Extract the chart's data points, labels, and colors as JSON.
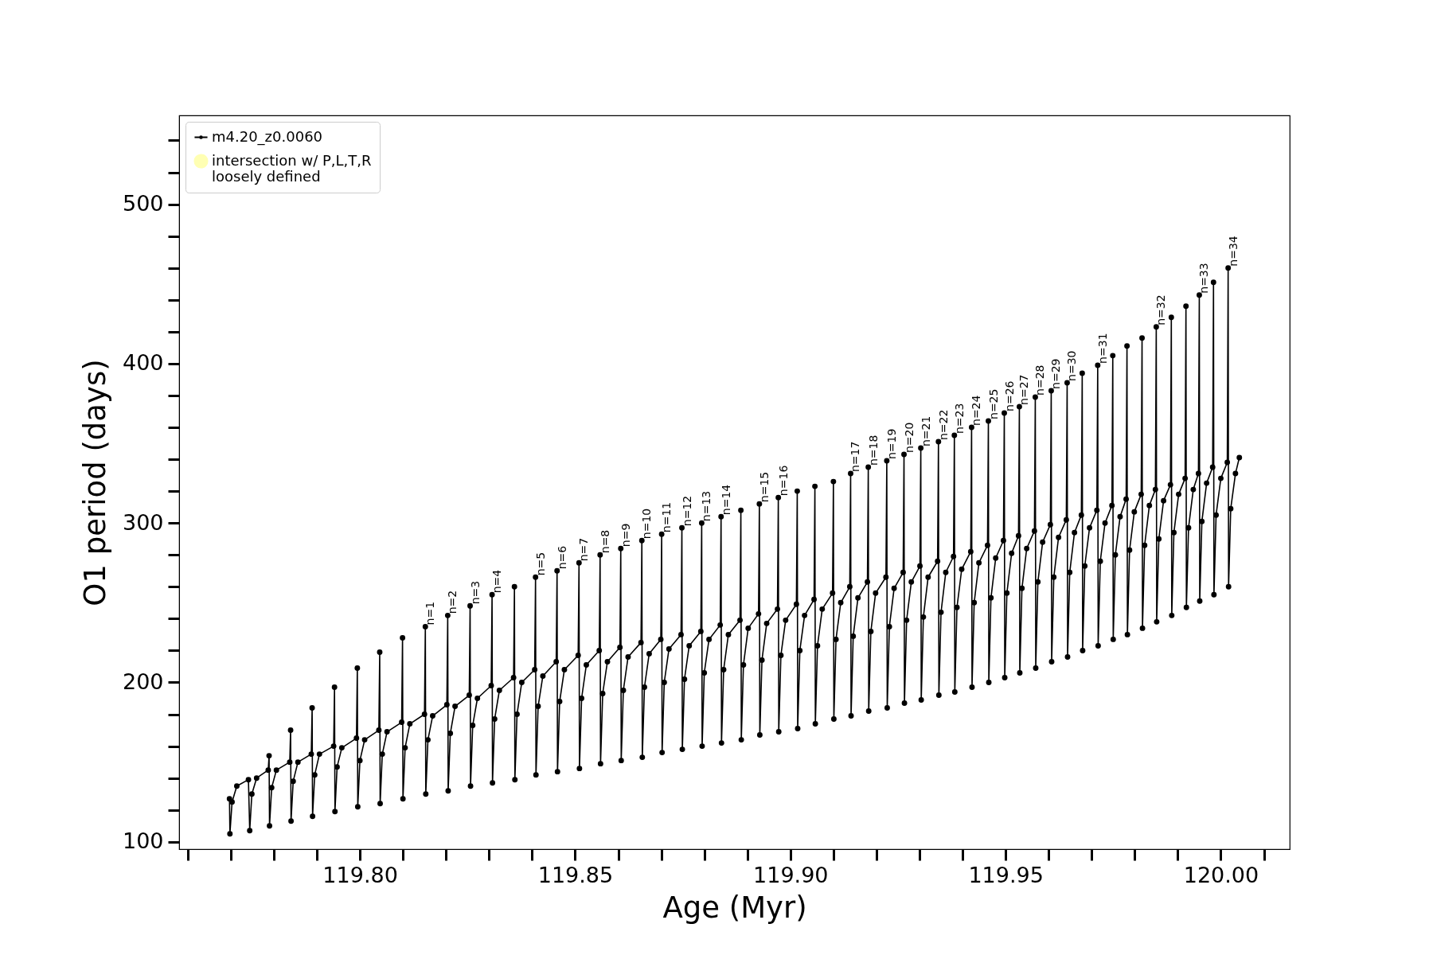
{
  "chart_data": {
    "type": "line",
    "xlabel": "Age (Myr)",
    "ylabel": "O1 period (days)",
    "marker": "circle",
    "legend": "top left",
    "xlim": [
      119.758,
      120.016
    ],
    "ylim": [
      95.4,
      555.7
    ],
    "xticks": [
      {
        "value": 119.76,
        "label": null
      },
      {
        "value": 119.77,
        "label": null
      },
      {
        "value": 119.78,
        "label": null
      },
      {
        "value": 119.79,
        "label": null
      },
      {
        "value": 119.8,
        "label": "119.80"
      },
      {
        "value": 119.81,
        "label": null
      },
      {
        "value": 119.82,
        "label": null
      },
      {
        "value": 119.83,
        "label": null
      },
      {
        "value": 119.84,
        "label": null
      },
      {
        "value": 119.85,
        "label": "119.85"
      },
      {
        "value": 119.86,
        "label": null
      },
      {
        "value": 119.87,
        "label": null
      },
      {
        "value": 119.88,
        "label": null
      },
      {
        "value": 119.89,
        "label": null
      },
      {
        "value": 119.9,
        "label": "119.90"
      },
      {
        "value": 119.91,
        "label": null
      },
      {
        "value": 119.92,
        "label": null
      },
      {
        "value": 119.93,
        "label": null
      },
      {
        "value": 119.94,
        "label": null
      },
      {
        "value": 119.95,
        "label": "119.95"
      },
      {
        "value": 119.96,
        "label": null
      },
      {
        "value": 119.97,
        "label": null
      },
      {
        "value": 119.98,
        "label": null
      },
      {
        "value": 119.99,
        "label": null
      },
      {
        "value": 120,
        "label": "120.00"
      },
      {
        "value": 120.01,
        "label": null
      }
    ],
    "yticks": [
      100,
      {
        "value": 120,
        "label": null
      },
      {
        "value": 140,
        "label": null
      },
      {
        "value": 160,
        "label": null
      },
      {
        "value": 180,
        "label": null
      },
      200,
      {
        "value": 220,
        "label": null
      },
      {
        "value": 240,
        "label": null
      },
      {
        "value": 260,
        "label": null
      },
      {
        "value": 280,
        "label": null
      },
      300,
      {
        "value": 320,
        "label": null
      },
      {
        "value": 340,
        "label": null
      },
      {
        "value": 360,
        "label": null
      },
      {
        "value": 380,
        "label": null
      },
      400,
      {
        "value": 420,
        "label": null
      },
      {
        "value": 440,
        "label": null
      },
      {
        "value": 460,
        "label": null
      },
      {
        "value": 480,
        "label": null
      },
      500,
      {
        "value": 520,
        "label": null
      },
      {
        "value": 540,
        "label": null
      }
    ],
    "series": [
      {
        "name": "m4.20_z0.0060",
        "type": "line",
        "color": "#000000",
        "x": [
          119.7697,
          119.7698,
          119.7703,
          119.7714,
          119.7741,
          119.7744,
          119.7749,
          119.776,
          119.7787,
          119.7789,
          119.779,
          119.7795,
          119.7806,
          119.7837,
          119.7839,
          119.784,
          119.7845,
          119.7856,
          119.7887,
          119.7889,
          119.789,
          119.7895,
          119.7906,
          119.7939,
          119.7941,
          119.7942,
          119.7947,
          119.7958,
          119.7992,
          119.7994,
          119.7995,
          119.8,
          119.8011,
          119.8044,
          119.8046,
          119.8047,
          119.8052,
          119.8063,
          119.8097,
          119.8099,
          119.81,
          119.8105,
          119.8116,
          119.815,
          119.8152,
          119.8153,
          119.8158,
          119.8169,
          119.8202,
          119.8204,
          119.8205,
          119.821,
          119.8221,
          119.8254,
          119.8256,
          119.8257,
          119.8262,
          119.8273,
          119.8305,
          119.8307,
          119.8308,
          119.8313,
          119.8324,
          119.8357,
          119.8359,
          119.836,
          119.8365,
          119.8376,
          119.8406,
          119.8408,
          119.8409,
          119.8414,
          119.8425,
          119.8456,
          119.8458,
          119.8459,
          119.8464,
          119.8475,
          119.8507,
          119.8509,
          119.851,
          119.8515,
          119.8526,
          119.8556,
          119.8558,
          119.8559,
          119.8564,
          119.8575,
          119.8604,
          119.8606,
          119.8607,
          119.8612,
          119.8623,
          119.8653,
          119.8655,
          119.8656,
          119.8661,
          119.8672,
          119.8699,
          119.8701,
          119.8702,
          119.8707,
          119.8718,
          119.8746,
          119.8748,
          119.8749,
          119.8754,
          119.8765,
          119.8792,
          119.8794,
          119.8795,
          119.88,
          119.8811,
          119.8837,
          119.8839,
          119.884,
          119.8845,
          119.8856,
          119.8883,
          119.8885,
          119.8886,
          119.8891,
          119.8902,
          119.8926,
          119.8928,
          119.8929,
          119.8934,
          119.8945,
          119.897,
          119.8972,
          119.8973,
          119.8978,
          119.8989,
          119.9014,
          119.9016,
          119.9017,
          119.9022,
          119.9033,
          119.9055,
          119.9057,
          119.9058,
          119.9063,
          119.9074,
          119.9098,
          119.91,
          119.9101,
          119.9106,
          119.9117,
          119.9138,
          119.914,
          119.9141,
          119.9146,
          119.9157,
          119.9179,
          119.9181,
          119.9182,
          119.9187,
          119.9198,
          119.9222,
          119.9224,
          119.9225,
          119.923,
          119.9241,
          119.9262,
          119.9264,
          119.9265,
          119.927,
          119.9281,
          119.9301,
          119.9303,
          119.9304,
          119.9309,
          119.932,
          119.9342,
          119.9344,
          119.9345,
          119.935,
          119.9361,
          119.9379,
          119.9381,
          119.9382,
          119.9387,
          119.9398,
          119.9419,
          119.9421,
          119.9422,
          119.9427,
          119.9438,
          119.9458,
          119.946,
          119.9461,
          119.9466,
          119.9477,
          119.9495,
          119.9497,
          119.9498,
          119.9503,
          119.9514,
          119.953,
          119.9532,
          119.9533,
          119.9538,
          119.9549,
          119.9567,
          119.9569,
          119.957,
          119.9575,
          119.9586,
          119.9604,
          119.9606,
          119.9607,
          119.9612,
          119.9623,
          119.9641,
          119.9643,
          119.9644,
          119.9649,
          119.966,
          119.9676,
          119.9678,
          119.9679,
          119.9684,
          119.9695,
          119.9712,
          119.9714,
          119.9715,
          119.972,
          119.9731,
          119.9747,
          119.9749,
          119.975,
          119.9755,
          119.9766,
          119.978,
          119.9782,
          119.9783,
          119.9788,
          119.9799,
          119.9815,
          119.9817,
          119.9818,
          119.9823,
          119.9834,
          119.9848,
          119.985,
          119.9851,
          119.9856,
          119.9867,
          119.9883,
          119.9885,
          119.9886,
          119.9891,
          119.9902,
          119.9917,
          119.9919,
          119.992,
          119.9925,
          119.9936,
          119.9948,
          119.995,
          119.9951,
          119.9956,
          119.9967,
          119.9981,
          119.9983,
          119.9984,
          119.9989,
          120.0,
          120.0015,
          120.0017,
          120.0018,
          120.0023,
          120.0034,
          120.0043
        ],
        "values": [
          127,
          105,
          125,
          135,
          139,
          107,
          130,
          140,
          145,
          154,
          110,
          134,
          145,
          150,
          170,
          113,
          138,
          150,
          155,
          184,
          116,
          142,
          155,
          160,
          197,
          119,
          147,
          159,
          165,
          209,
          122,
          151,
          164,
          170,
          219,
          124,
          155,
          169,
          175,
          228,
          127,
          159,
          174,
          180,
          235,
          130,
          164,
          179,
          186,
          242,
          132,
          168,
          185,
          192,
          248,
          135,
          173,
          190,
          198,
          255,
          137,
          177,
          195,
          203,
          260,
          139,
          180,
          200,
          208,
          266,
          142,
          185,
          204,
          213,
          270,
          144,
          188,
          208,
          217,
          275,
          146,
          190,
          211,
          220,
          280,
          149,
          193,
          213,
          222,
          284,
          151,
          195,
          216,
          225,
          289,
          153,
          197,
          218,
          227,
          293,
          156,
          200,
          221,
          230,
          297,
          158,
          202,
          223,
          232,
          300,
          160,
          206,
          227,
          236,
          304,
          162,
          208,
          230,
          239,
          308,
          164,
          211,
          234,
          243,
          312,
          167,
          214,
          237,
          246,
          316,
          169,
          217,
          239,
          249,
          320,
          171,
          220,
          242,
          252,
          323,
          174,
          223,
          246,
          256,
          326,
          177,
          227,
          250,
          260,
          331,
          179,
          229,
          253,
          263,
          335,
          182,
          232,
          256,
          266,
          339,
          184,
          235,
          259,
          269,
          343,
          187,
          239,
          263,
          273,
          347,
          189,
          241,
          266,
          276,
          351,
          192,
          244,
          269,
          279,
          355,
          194,
          247,
          271,
          282,
          360,
          197,
          250,
          275,
          286,
          364,
          200,
          253,
          278,
          289,
          369,
          203,
          256,
          281,
          292,
          373,
          206,
          259,
          284,
          295,
          379,
          209,
          263,
          288,
          299,
          383,
          213,
          266,
          291,
          302,
          388,
          216,
          269,
          294,
          305,
          394,
          220,
          273,
          297,
          308,
          399,
          223,
          276,
          300,
          311,
          405,
          227,
          280,
          304,
          315,
          411,
          230,
          283,
          307,
          318,
          416,
          234,
          286,
          311,
          321,
          423,
          238,
          290,
          314,
          324,
          429,
          242,
          294,
          318,
          328,
          436,
          247,
          297,
          321,
          331,
          443,
          251,
          301,
          325,
          335,
          451,
          255,
          305,
          328,
          338,
          460,
          260,
          309,
          331,
          341
        ]
      },
      {
        "name": "intersection w/ P,L,T,R\nloosely defined",
        "type": "scatter",
        "color": "#ffffb3"
      }
    ],
    "annotations": [
      {
        "text": "n=1",
        "x": 119.8152,
        "y": 235
      },
      {
        "text": "n=2",
        "x": 119.8204,
        "y": 242
      },
      {
        "text": "n=3",
        "x": 119.8256,
        "y": 248
      },
      {
        "text": "n=4",
        "x": 119.8307,
        "y": 255
      },
      {
        "text": "n=5",
        "x": 119.8408,
        "y": 266
      },
      {
        "text": "n=6",
        "x": 119.8458,
        "y": 270
      },
      {
        "text": "n=7",
        "x": 119.8509,
        "y": 275
      },
      {
        "text": "n=8",
        "x": 119.8558,
        "y": 280
      },
      {
        "text": "n=9",
        "x": 119.8606,
        "y": 284
      },
      {
        "text": "n=10",
        "x": 119.8655,
        "y": 289
      },
      {
        "text": "n=11",
        "x": 119.8701,
        "y": 293
      },
      {
        "text": "n=12",
        "x": 119.8748,
        "y": 297
      },
      {
        "text": "n=13",
        "x": 119.8794,
        "y": 300
      },
      {
        "text": "n=14",
        "x": 119.8839,
        "y": 304
      },
      {
        "text": "n=15",
        "x": 119.8928,
        "y": 312
      },
      {
        "text": "n=16",
        "x": 119.8972,
        "y": 316
      },
      {
        "text": "n=17",
        "x": 119.914,
        "y": 331
      },
      {
        "text": "n=18",
        "x": 119.9181,
        "y": 335
      },
      {
        "text": "n=19",
        "x": 119.9224,
        "y": 339
      },
      {
        "text": "n=20",
        "x": 119.9264,
        "y": 343
      },
      {
        "text": "n=21",
        "x": 119.9303,
        "y": 347
      },
      {
        "text": "n=22",
        "x": 119.9344,
        "y": 351
      },
      {
        "text": "n=23",
        "x": 119.9381,
        "y": 355
      },
      {
        "text": "n=24",
        "x": 119.9421,
        "y": 360
      },
      {
        "text": "n=25",
        "x": 119.946,
        "y": 364
      },
      {
        "text": "n=26",
        "x": 119.9497,
        "y": 369
      },
      {
        "text": "n=27",
        "x": 119.9532,
        "y": 373
      },
      {
        "text": "n=28",
        "x": 119.9569,
        "y": 379
      },
      {
        "text": "n=29",
        "x": 119.9606,
        "y": 383
      },
      {
        "text": "n=30",
        "x": 119.9643,
        "y": 388
      },
      {
        "text": "n=31",
        "x": 119.9714,
        "y": 399
      },
      {
        "text": "n=32",
        "x": 119.985,
        "y": 423
      },
      {
        "text": "n=33",
        "x": 119.995,
        "y": 443
      },
      {
        "text": "n=34",
        "x": 120.0017,
        "y": 460
      }
    ]
  }
}
